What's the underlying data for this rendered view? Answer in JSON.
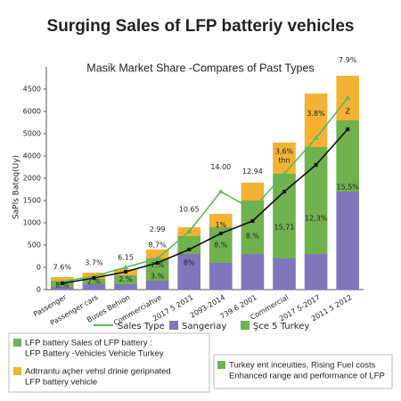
{
  "chart_data": {
    "type": "stacked_bar_line",
    "title": "Surging Sales of LFP batteriy vehicles",
    "subtitle": "Masik Market Share -Compares of Past Types",
    "y_label": "SaPls Bateq(Uy)",
    "categories": [
      "Passenger",
      "Passenger cars",
      "Buses Behion",
      "Commerciahve",
      "2017 5 2011",
      "2093-2014",
      "739 6 2001",
      "Commercial",
      "2017 5-2017",
      "2011 5 2012"
    ],
    "ylim": [
      0,
      5000
    ],
    "yticks": [
      0,
      {
        "value": 500,
        "label": "0"
      },
      {
        "value": 1000,
        "label": "500"
      },
      {
        "value": 1500,
        "label": "1000"
      },
      {
        "value": 2000,
        "label": "1500"
      },
      {
        "value": 2500,
        "label": "2000"
      },
      {
        "value": 3000,
        "label": "4000"
      },
      {
        "value": 3500,
        "label": "5000"
      },
      {
        "value": 4000,
        "label": "6000"
      },
      4500
    ],
    "bars": [
      {
        "name": "Sangeriay",
        "color": "#7f76bd",
        "values": [
          60,
          120,
          120,
          200,
          800,
          600,
          800,
          700,
          800,
          2200
        ]
      },
      {
        "name": "Şce 5 Turkey",
        "color": "#6fb24f",
        "values": [
          140,
          120,
          200,
          500,
          400,
          800,
          1200,
          1900,
          2400,
          1600
        ]
      },
      {
        "color": "#f3b234",
        "values": [
          80,
          140,
          140,
          200,
          200,
          300,
          400,
          700,
          1200,
          1000
        ]
      }
    ],
    "lines": [
      {
        "name": "Sales Type",
        "color": "#5cb85c",
        "marker": "triangle",
        "values": [
          180,
          300,
          500,
          700,
          1300,
          2200,
          1800,
          2600,
          3400,
          4300
        ]
      },
      {
        "color": "#111111",
        "marker": "square",
        "values": [
          140,
          260,
          400,
          600,
          900,
          1260,
          1540,
          2200,
          2800,
          3600
        ]
      }
    ],
    "annotations": [
      {
        "text": "7.6%",
        "category": "Passenger",
        "y": 500
      },
      {
        "text": "3.7%",
        "category": "Passenger cars",
        "y": 600
      },
      {
        "text": "6.15",
        "category": "Buses Behion",
        "y": 720
      },
      {
        "text": "8,7%",
        "category": "Commerciahve",
        "y": 1000
      },
      {
        "text": "2.99",
        "category": "Commerciahve",
        "y": 1350
      },
      {
        "text": "10.65",
        "category": "2017 5 2011",
        "y": 1800
      },
      {
        "text": "14.00",
        "category": "2093-2014",
        "y": 2750
      },
      {
        "text": "12.94",
        "category": "739 6 2001",
        "y": 2650
      },
      {
        "text": "3,6%",
        "category": "Commercial",
        "y": 3100
      },
      {
        "text": "3.8%",
        "category": "2017 5-2017",
        "y": 3950
      },
      {
        "text": "7.9%",
        "category": "2011 5 2012",
        "y": 5150
      },
      {
        "text": "8.%",
        "category": "Passenger",
        "y": 100
      },
      {
        "text": "2.%",
        "category": "Passenger cars",
        "y": 180
      },
      {
        "text": "2.%",
        "category": "Buses Behion",
        "y": 230
      },
      {
        "text": "3.%",
        "category": "Commerciahve",
        "y": 300
      },
      {
        "text": "7.%",
        "category": "Commerciahve",
        "y": 550
      },
      {
        "text": "8%",
        "category": "2017 5 2011",
        "y": 600
      },
      {
        "text": "1%",
        "category": "2093-2014",
        "y": 1450
      },
      {
        "text": "8.%",
        "category": "2093-2014",
        "y": 1000
      },
      {
        "text": "8.%",
        "category": "739 6 2001",
        "y": 1200
      },
      {
        "text": "15,71",
        "category": "Commercial",
        "y": 1400
      },
      {
        "text": "thn",
        "category": "Commercial",
        "y": 2900
      },
      {
        "text": "12,3%",
        "category": "2017 5-2017",
        "y": 1600
      },
      {
        "text": "Z",
        "category": "2011 5 2012",
        "y": 4000
      },
      {
        "text": "15,5%",
        "category": "2011 5 2012",
        "y": 2300
      }
    ],
    "notes_left": [
      {
        "color": "#6fb24f",
        "lines": [
          "LFP battery Sales of LFP battery :",
          "LFP Battery -Vehicles Vehicle Turkey"
        ]
      },
      {
        "color": "#f3b234",
        "lines": [
          "Adtrrantu açher vehsl drinie geripnated",
          "LFP battery vehicle"
        ]
      }
    ],
    "notes_right": [
      {
        "color": "#6fb24f",
        "lines": [
          "Turkey ent inceuities, Rising Fuel costs",
          "Enhanced range and performance of LFP"
        ]
      }
    ]
  }
}
